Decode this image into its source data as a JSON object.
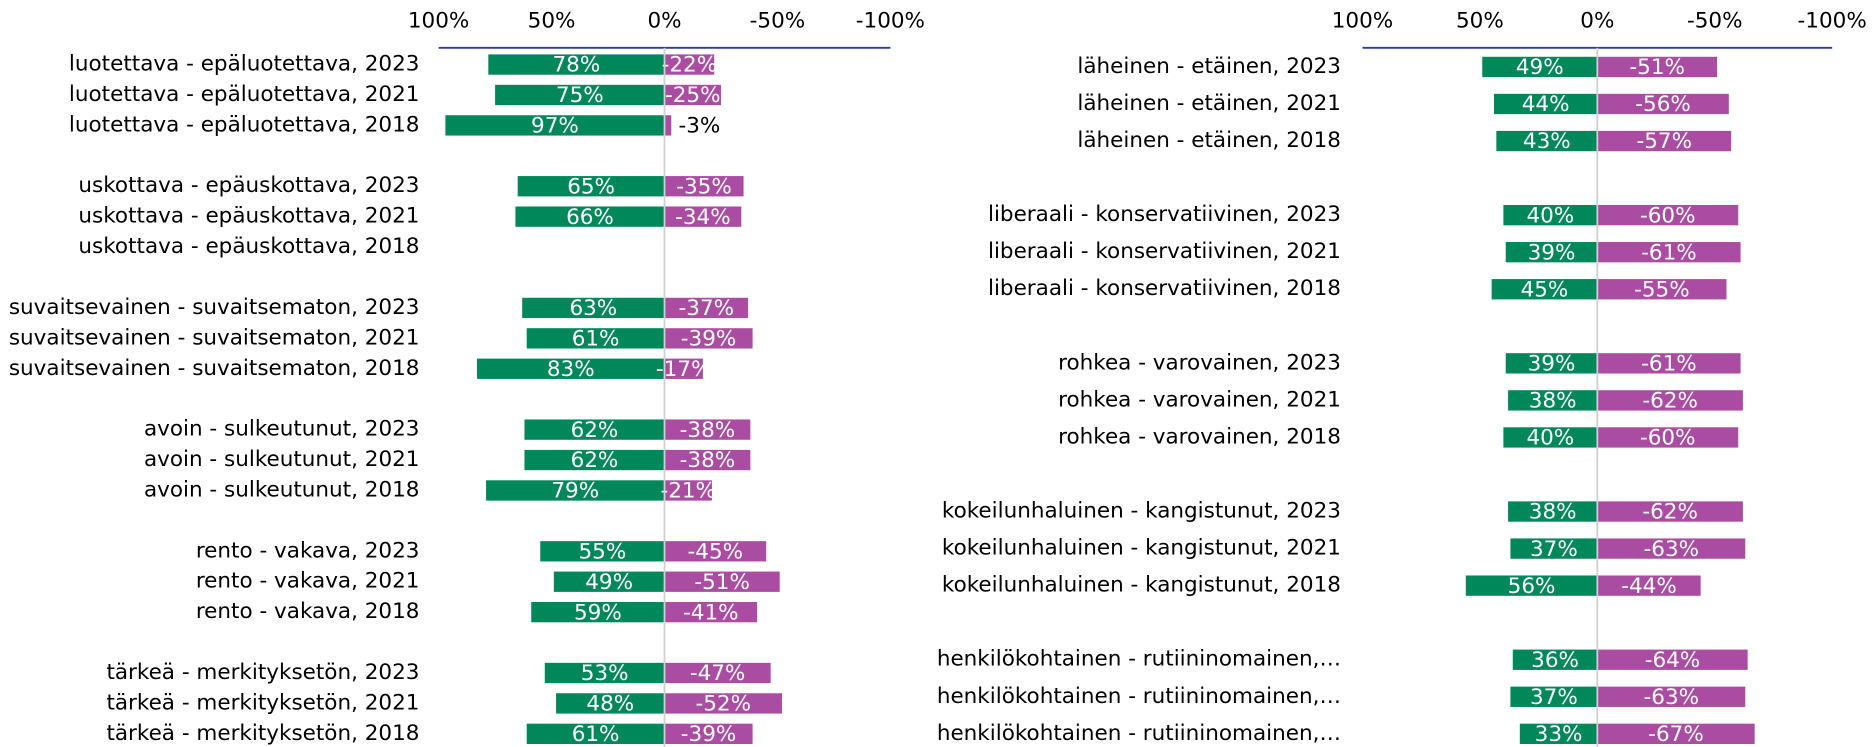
{
  "chart_data": [
    {
      "type": "diverging-bar",
      "categories": [
        "luotettava - epäluotettava, 2023",
        "luotettava - epäluotettava, 2021",
        "luotettava - epäluotettava, 2018",
        null,
        "uskottava - epäuskottava, 2023",
        "uskottava - epäuskottava, 2021",
        "uskottava - epäuskottava, 2018",
        null,
        "suvaitsevainen - suvaitsematon, 2023",
        "suvaitsevainen - suvaitsematon, 2021",
        "suvaitsevainen - suvaitsematon, 2018",
        null,
        "avoin - sulkeutunut, 2023",
        "avoin - sulkeutunut, 2021",
        "avoin - sulkeutunut, 2018",
        null,
        "rento - vakava, 2023",
        "rento - vakava, 2021",
        "rento - vakava, 2018",
        null,
        "tärkeä - merkityksetön, 2023",
        "tärkeä - merkityksetön, 2021",
        "tärkeä - merkityksetön, 2018"
      ],
      "series": [
        {
          "color": "#00875a",
          "values": [
            78,
            75,
            97,
            null,
            65,
            66,
            null,
            null,
            63,
            61,
            83,
            null,
            62,
            62,
            79,
            null,
            55,
            49,
            59,
            null,
            53,
            48,
            61
          ],
          "value_labels": [
            "78%",
            "75%",
            "97%",
            null,
            "65%",
            "66%",
            null,
            null,
            "63%",
            "61%",
            "83%",
            null,
            "62%",
            "62%",
            "79%",
            null,
            "55%",
            "49%",
            "59%",
            null,
            "53%",
            "48%",
            "61%"
          ]
        },
        {
          "color": "#ab4ca3",
          "values": [
            -22,
            -25,
            -3,
            null,
            -35,
            -34,
            null,
            null,
            -37,
            -39,
            -17,
            null,
            -38,
            -38,
            -21,
            null,
            -45,
            -51,
            -41,
            null,
            -47,
            -52,
            -39
          ],
          "value_labels": [
            "-22%",
            "-25%",
            "-3%",
            null,
            "-35%",
            "-34%",
            null,
            null,
            "-37%",
            "-39%",
            "-17%",
            null,
            "-38%",
            "-38%",
            "-21%",
            null,
            "-45%",
            "-51%",
            "-41%",
            null,
            "-47%",
            "-52%",
            "-39%"
          ]
        }
      ],
      "xlim": [
        100,
        -100
      ],
      "xticks": [
        {
          "value": 100,
          "label": "100%"
        },
        {
          "value": 50,
          "label": "50%"
        },
        {
          "value": 0,
          "label": "0%"
        },
        {
          "value": -50,
          "label": "-50%"
        },
        {
          "value": -100,
          "label": "-100%"
        }
      ]
    },
    {
      "type": "diverging-bar",
      "categories": [
        "läheinen - etäinen, 2023",
        "läheinen - etäinen, 2021",
        "läheinen - etäinen, 2018",
        null,
        "liberaali - konservatiivinen, 2023",
        "liberaali - konservatiivinen, 2021",
        "liberaali - konservatiivinen, 2018",
        null,
        "rohkea - varovainen, 2023",
        "rohkea - varovainen, 2021",
        "rohkea - varovainen, 2018",
        null,
        "kokeilunhaluinen - kangistunut, 2023",
        "kokeilunhaluinen - kangistunut, 2021",
        "kokeilunhaluinen - kangistunut, 2018",
        null,
        "henkilökohtainen - rutiininomainen,…",
        "henkilökohtainen - rutiininomainen,…",
        "henkilökohtainen - rutiininomainen,…"
      ],
      "series": [
        {
          "color": "#00875a",
          "values": [
            49,
            44,
            43,
            null,
            40,
            39,
            45,
            null,
            39,
            38,
            40,
            null,
            38,
            37,
            56,
            null,
            36,
            37,
            33
          ],
          "value_labels": [
            "49%",
            "44%",
            "43%",
            null,
            "40%",
            "39%",
            "45%",
            null,
            "39%",
            "38%",
            "40%",
            null,
            "38%",
            "37%",
            "56%",
            null,
            "36%",
            "37%",
            "33%"
          ]
        },
        {
          "color": "#ab4ca3",
          "values": [
            -51,
            -56,
            -57,
            null,
            -60,
            -61,
            -55,
            null,
            -61,
            -62,
            -60,
            null,
            -62,
            -63,
            -44,
            null,
            -64,
            -63,
            -67
          ],
          "value_labels": [
            "-51%",
            "-56%",
            "-57%",
            null,
            "-60%",
            "-61%",
            "-55%",
            null,
            "-61%",
            "-62%",
            "-60%",
            null,
            "-62%",
            "-63%",
            "-44%",
            null,
            "-64%",
            "-63%",
            "-67%"
          ]
        }
      ],
      "xlim": [
        100,
        -100
      ],
      "xticks": [
        {
          "value": 100,
          "label": "100%"
        },
        {
          "value": 50,
          "label": "50%"
        },
        {
          "value": 0,
          "label": "0%"
        },
        {
          "value": -50,
          "label": "-50%"
        },
        {
          "value": -100,
          "label": "-100%"
        }
      ]
    }
  ]
}
